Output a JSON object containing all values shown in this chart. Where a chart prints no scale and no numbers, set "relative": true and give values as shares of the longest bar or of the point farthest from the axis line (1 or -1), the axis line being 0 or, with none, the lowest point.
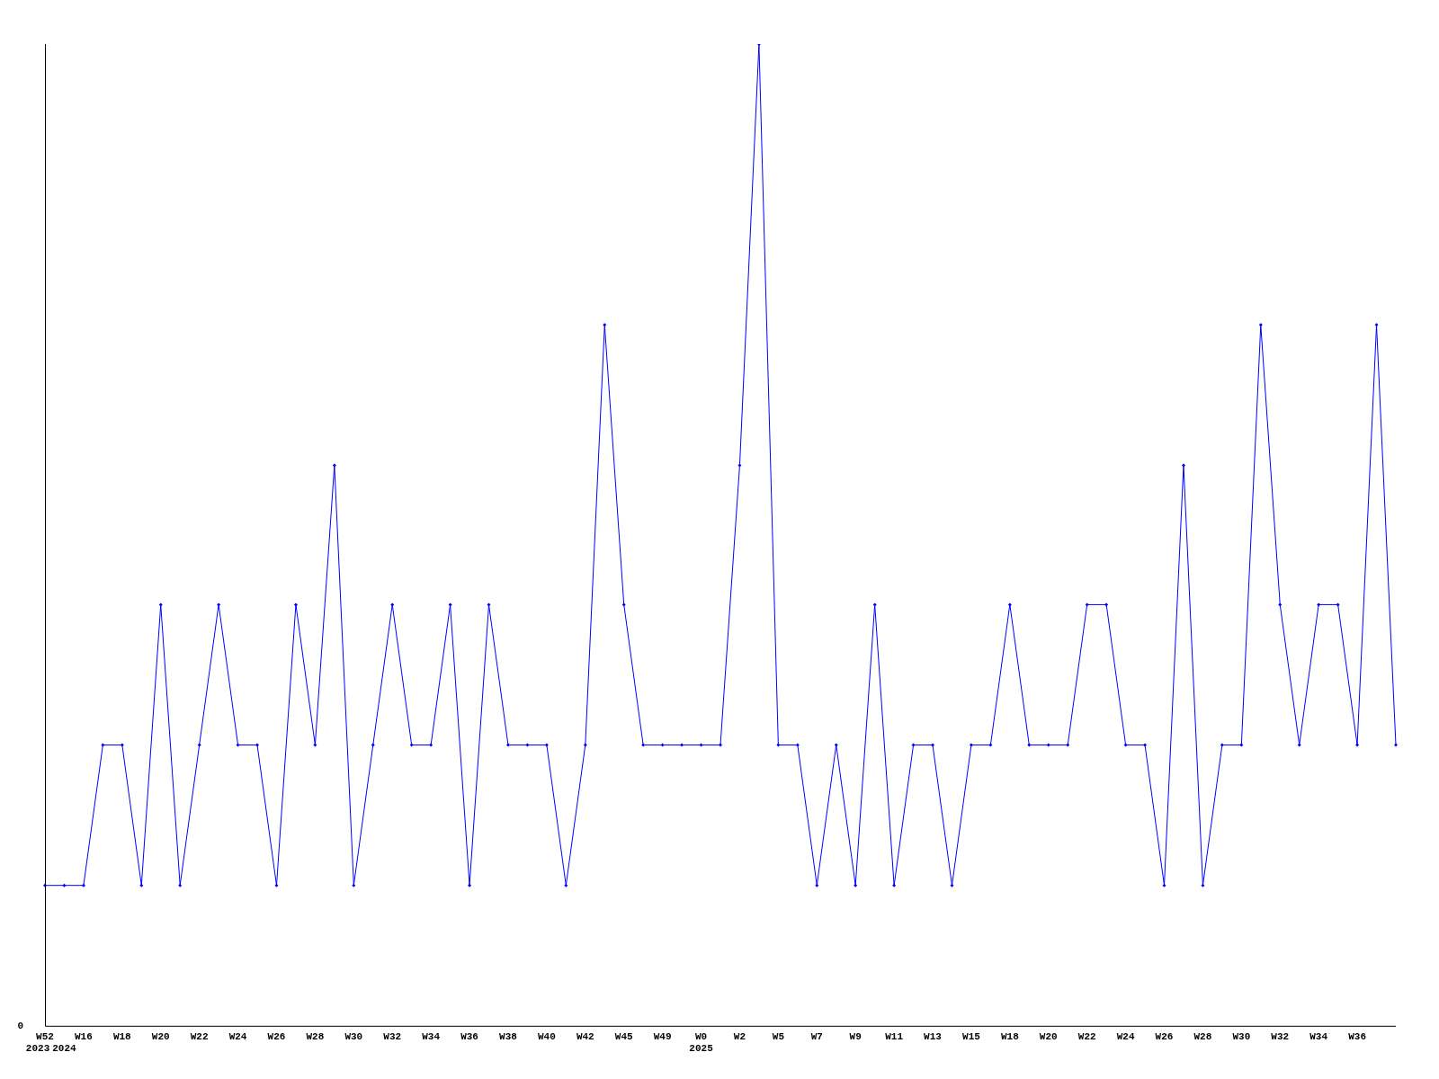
{
  "chart_data": {
    "type": "line",
    "relative": true,
    "marker": "diamond",
    "line_style": "solid",
    "grid": false,
    "legend": false,
    "categories": [
      "W52\n2023",
      "\n2024",
      "W16",
      null,
      "W18",
      null,
      "W20",
      null,
      "W22",
      null,
      "W24",
      null,
      "W26",
      null,
      "W28",
      null,
      "W30",
      null,
      "W32",
      null,
      "W34",
      null,
      "W36",
      null,
      "W38",
      null,
      "W40",
      null,
      "W42",
      null,
      "W45",
      null,
      "W49",
      null,
      "W0\n2025",
      null,
      "W2",
      null,
      "W5",
      null,
      "W7",
      null,
      "W9",
      null,
      "W11",
      null,
      "W13",
      null,
      "W15",
      null,
      "W18",
      null,
      "W20",
      null,
      "W22",
      null,
      "W24",
      null,
      "W26",
      null,
      "W28",
      null,
      "W30",
      null,
      "W32",
      null,
      "W34",
      null,
      "W36",
      null,
      null
    ],
    "series": [
      {
        "color": "#0000ff",
        "values": [
          0.143,
          0.143,
          0.143,
          0.286,
          0.286,
          0.143,
          0.429,
          0.143,
          0.286,
          0.429,
          0.286,
          0.286,
          0.143,
          0.429,
          0.286,
          0.571,
          0.143,
          0.286,
          0.429,
          0.286,
          0.286,
          0.429,
          0.143,
          0.429,
          0.286,
          0.286,
          0.286,
          0.143,
          0.286,
          0.714,
          0.429,
          0.286,
          0.286,
          0.286,
          0.286,
          0.286,
          0.571,
          1,
          0.286,
          0.286,
          0.143,
          0.286,
          0.143,
          0.429,
          0.143,
          0.286,
          0.286,
          0.143,
          0.286,
          0.286,
          0.429,
          0.286,
          0.286,
          0.286,
          0.429,
          0.429,
          0.286,
          0.286,
          0.143,
          0.571,
          0.143,
          0.286,
          0.286,
          0.714,
          0.429,
          0.286,
          0.429,
          0.429,
          0.286,
          0.714,
          0.286
        ]
      }
    ],
    "annotations": [
      "0"
    ]
  }
}
